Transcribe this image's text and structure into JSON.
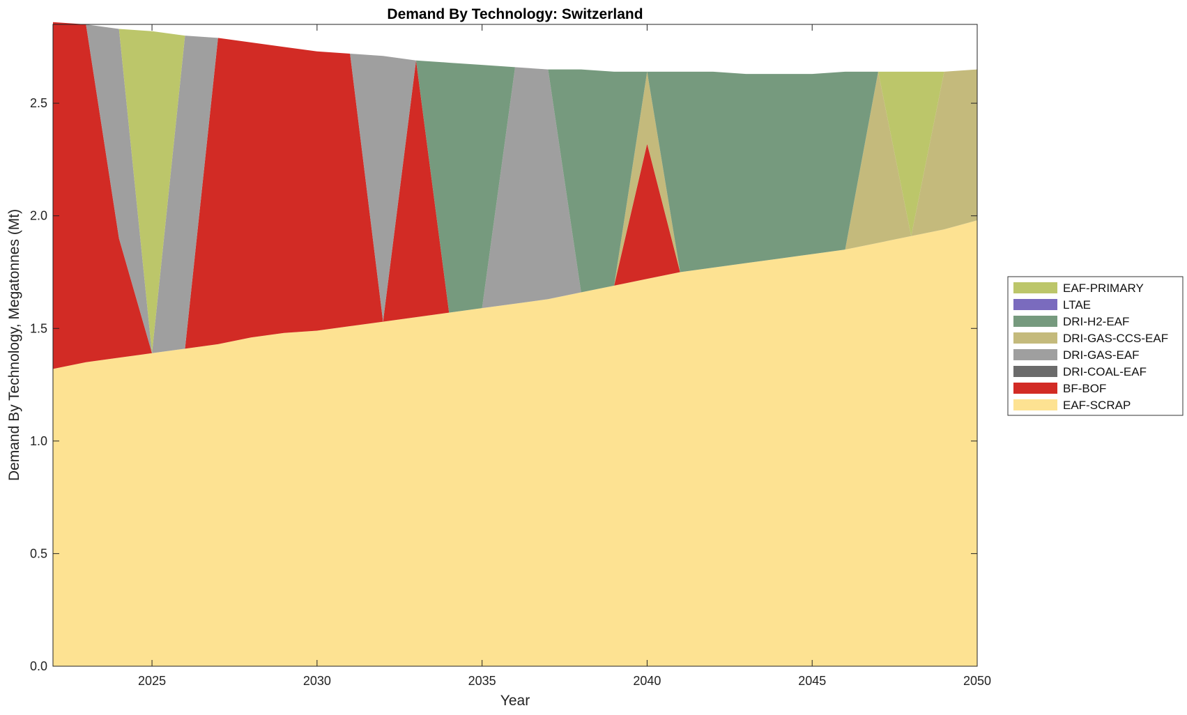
{
  "chart_data": {
    "type": "area",
    "title": "Demand By Technology: Switzerland",
    "xlabel": "Year",
    "ylabel": "Demand By Technology, Megatonnes (Mt)",
    "xlim": [
      2022,
      2050
    ],
    "ylim": [
      0,
      2.85
    ],
    "xticks": [
      2025,
      2030,
      2035,
      2040,
      2045,
      2050
    ],
    "yticks": [
      "0.0",
      "0.5",
      "1.0",
      "1.5",
      "2.0",
      "2.5"
    ],
    "x": [
      2022,
      2023,
      2024,
      2025,
      2026,
      2027,
      2028,
      2029,
      2030,
      2031,
      2032,
      2033,
      2034,
      2035,
      2036,
      2037,
      2038,
      2039,
      2040,
      2041,
      2042,
      2043,
      2044,
      2045,
      2046,
      2047,
      2048,
      2049,
      2050
    ],
    "series": [
      {
        "name": "EAF-SCRAP",
        "color": "#FDE292",
        "values": [
          1.32,
          1.35,
          1.37,
          1.39,
          1.41,
          1.43,
          1.46,
          1.48,
          1.49,
          1.51,
          1.53,
          1.55,
          1.57,
          1.59,
          1.61,
          1.63,
          1.66,
          1.69,
          1.72,
          1.75,
          1.77,
          1.79,
          1.81,
          1.83,
          1.85,
          1.88,
          1.91,
          1.94,
          1.98
        ]
      },
      {
        "name": "BF-BOF",
        "color": "#D22B25",
        "values": [
          1.54,
          1.5,
          0.53,
          0,
          0,
          1.36,
          1.31,
          1.27,
          1.24,
          1.21,
          0,
          1.14,
          0,
          0,
          0,
          0,
          0,
          0,
          0.6,
          0,
          0,
          0,
          0,
          0,
          0,
          0,
          0,
          0,
          0
        ]
      },
      {
        "name": "DRI-COAL-EAF",
        "color": "#6B6B6B",
        "values": [
          0,
          0,
          0,
          0,
          0,
          0,
          0,
          0,
          0,
          0,
          0,
          0,
          0,
          0,
          0,
          0,
          0,
          0,
          0,
          0,
          0,
          0,
          0,
          0,
          0,
          0,
          0,
          0,
          0
        ]
      },
      {
        "name": "DRI-GAS-EAF",
        "color": "#9F9F9F",
        "values": [
          0,
          0,
          0.93,
          0,
          1.39,
          0,
          0,
          0,
          0,
          0,
          1.18,
          0,
          0,
          0,
          1.05,
          1.02,
          0,
          0,
          0,
          0,
          0,
          0,
          0,
          0,
          0,
          0,
          0,
          0,
          0
        ]
      },
      {
        "name": "DRI-GAS-CCS-EAF",
        "color": "#C4BA7C",
        "values": [
          0,
          0,
          0,
          0,
          0,
          0,
          0,
          0,
          0,
          0,
          0,
          0,
          0,
          0,
          0,
          0,
          0,
          0,
          0.32,
          0,
          0,
          0,
          0,
          0,
          0,
          0.76,
          0,
          0.7,
          0.67
        ]
      },
      {
        "name": "DRI-H2-EAF",
        "color": "#769A7E",
        "values": [
          0,
          0,
          0,
          0,
          0,
          0,
          0,
          0,
          0,
          0,
          0,
          0,
          1.11,
          1.08,
          0,
          0,
          0.99,
          0.95,
          0,
          0.89,
          0.87,
          0.84,
          0.82,
          0.8,
          0.79,
          0,
          0,
          0,
          0
        ]
      },
      {
        "name": "LTAE",
        "color": "#7A6BBE",
        "values": [
          0,
          0,
          0,
          0,
          0,
          0,
          0,
          0,
          0,
          0,
          0,
          0,
          0,
          0,
          0,
          0,
          0,
          0,
          0,
          0,
          0,
          0,
          0,
          0,
          0,
          0,
          0,
          0,
          0
        ]
      },
      {
        "name": "EAF-PRIMARY",
        "color": "#BCC66A",
        "values": [
          0,
          0,
          0,
          1.43,
          0,
          0,
          0,
          0,
          0,
          0,
          0,
          0,
          0,
          0,
          0,
          0,
          0,
          0,
          0,
          0,
          0,
          0,
          0,
          0,
          0,
          0,
          0.73,
          0,
          0
        ]
      }
    ],
    "legend_order": [
      "EAF-PRIMARY",
      "LTAE",
      "DRI-H2-EAF",
      "DRI-GAS-CCS-EAF",
      "DRI-GAS-EAF",
      "DRI-COAL-EAF",
      "BF-BOF",
      "EAF-SCRAP"
    ],
    "legend_position": "right",
    "grid": false
  }
}
